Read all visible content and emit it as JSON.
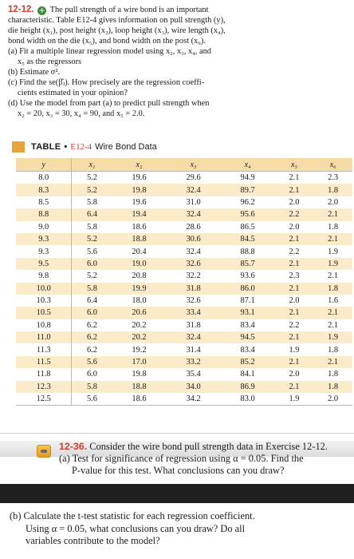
{
  "exercise": {
    "number": "12-12.",
    "line1": "The pull strength of a wire bond is an important",
    "line2": "characteristic. Table E12-4 gives information on pull strength (y),",
    "line3": "die height (x₁), post height (x₂), loop height (x₃), wire length (x₄),",
    "line4": "bond width on the die (x₅), and bond width on the post (x₆).",
    "a1": "(a) Fit a multiple linear regression model using x₂, x₃, x₄, and",
    "a2": "x₅ as the regressors",
    "b": "(b) Estimate σ².",
    "c1": "(c) Find the se(β̂ⱼ). How precisely are the regression coeffi-",
    "c2": "cients estimated in your opinion?",
    "d1": "(d) Use the model from part (a) to predict pull strength when",
    "d2": "x₂ = 20, x₃ = 30, x₄ = 90, and x₅ = 2.0."
  },
  "table": {
    "label": "TABLE",
    "dot": "•",
    "code": "E12-4",
    "title": "Wire Bond Data",
    "headers": [
      "y",
      "x₁",
      "x₂",
      "x₃",
      "x₄",
      "x₅",
      "x₆"
    ],
    "rows": [
      [
        "8.0",
        "5.2",
        "19.6",
        "29.6",
        "94.9",
        "2.1",
        "2.3"
      ],
      [
        "8.3",
        "5.2",
        "19.8",
        "32.4",
        "89.7",
        "2.1",
        "1.8"
      ],
      [
        "8.5",
        "5.8",
        "19.6",
        "31.0",
        "96.2",
        "2.0",
        "2.0"
      ],
      [
        "8.8",
        "6.4",
        "19.4",
        "32.4",
        "95.6",
        "2.2",
        "2.1"
      ],
      [
        "9.0",
        "5.8",
        "18.6",
        "28.6",
        "86.5",
        "2.0",
        "1.8"
      ],
      [
        "9.3",
        "5.2",
        "18.8",
        "30.6",
        "84.5",
        "2.1",
        "2.1"
      ],
      [
        "9.3",
        "5.6",
        "20.4",
        "32.4",
        "88.8",
        "2.2",
        "1.9"
      ],
      [
        "9.5",
        "6.0",
        "19.0",
        "32.6",
        "85.7",
        "2.1",
        "1.9"
      ],
      [
        "9.8",
        "5.2",
        "20.8",
        "32.2",
        "93.6",
        "2.3",
        "2.1"
      ],
      [
        "10.0",
        "5.8",
        "19.9",
        "31.8",
        "86.0",
        "2.1",
        "1.8"
      ],
      [
        "10.3",
        "6.4",
        "18.0",
        "32.6",
        "87.1",
        "2.0",
        "1.6"
      ],
      [
        "10.5",
        "6.0",
        "20.6",
        "33.4",
        "93.1",
        "2.1",
        "2.1"
      ],
      [
        "10.8",
        "6.2",
        "20.2",
        "31.8",
        "83.4",
        "2.2",
        "2.1"
      ],
      [
        "11.0",
        "6.2",
        "20.2",
        "32.4",
        "94.5",
        "2.1",
        "1.9"
      ],
      [
        "11.3",
        "6.2",
        "19.2",
        "31.4",
        "83.4",
        "1.9",
        "1.8"
      ],
      [
        "11.5",
        "5.6",
        "17.0",
        "33.2",
        "85.2",
        "2.1",
        "2.1"
      ],
      [
        "11.8",
        "6.0",
        "19.8",
        "35.4",
        "84.1",
        "2.0",
        "1.8"
      ],
      [
        "12.3",
        "5.8",
        "18.8",
        "34.0",
        "86.9",
        "2.1",
        "1.8"
      ],
      [
        "12.5",
        "5.6",
        "18.6",
        "34.2",
        "83.0",
        "1.9",
        "2.0"
      ]
    ]
  },
  "followup": {
    "number": "12-36.",
    "line1": "Consider the wire bond pull strength data in Exercise 12-12.",
    "a1": "(a) Test for significance of regression using α = 0.05. Find the",
    "a2": "P-value for this test. What conclusions can you draw?",
    "b1": "(b) Calculate the t-test statistic for each regression coefficient.",
    "b2": "Using α = 0.05, what conclusions can you draw? Do all",
    "b3": "variables contribute to the model?"
  },
  "colors": {
    "accent": "#d33a2c",
    "table_header": "#f6dca6",
    "table_stripe": "#fbebc8",
    "swatch": "#e8a33a"
  }
}
